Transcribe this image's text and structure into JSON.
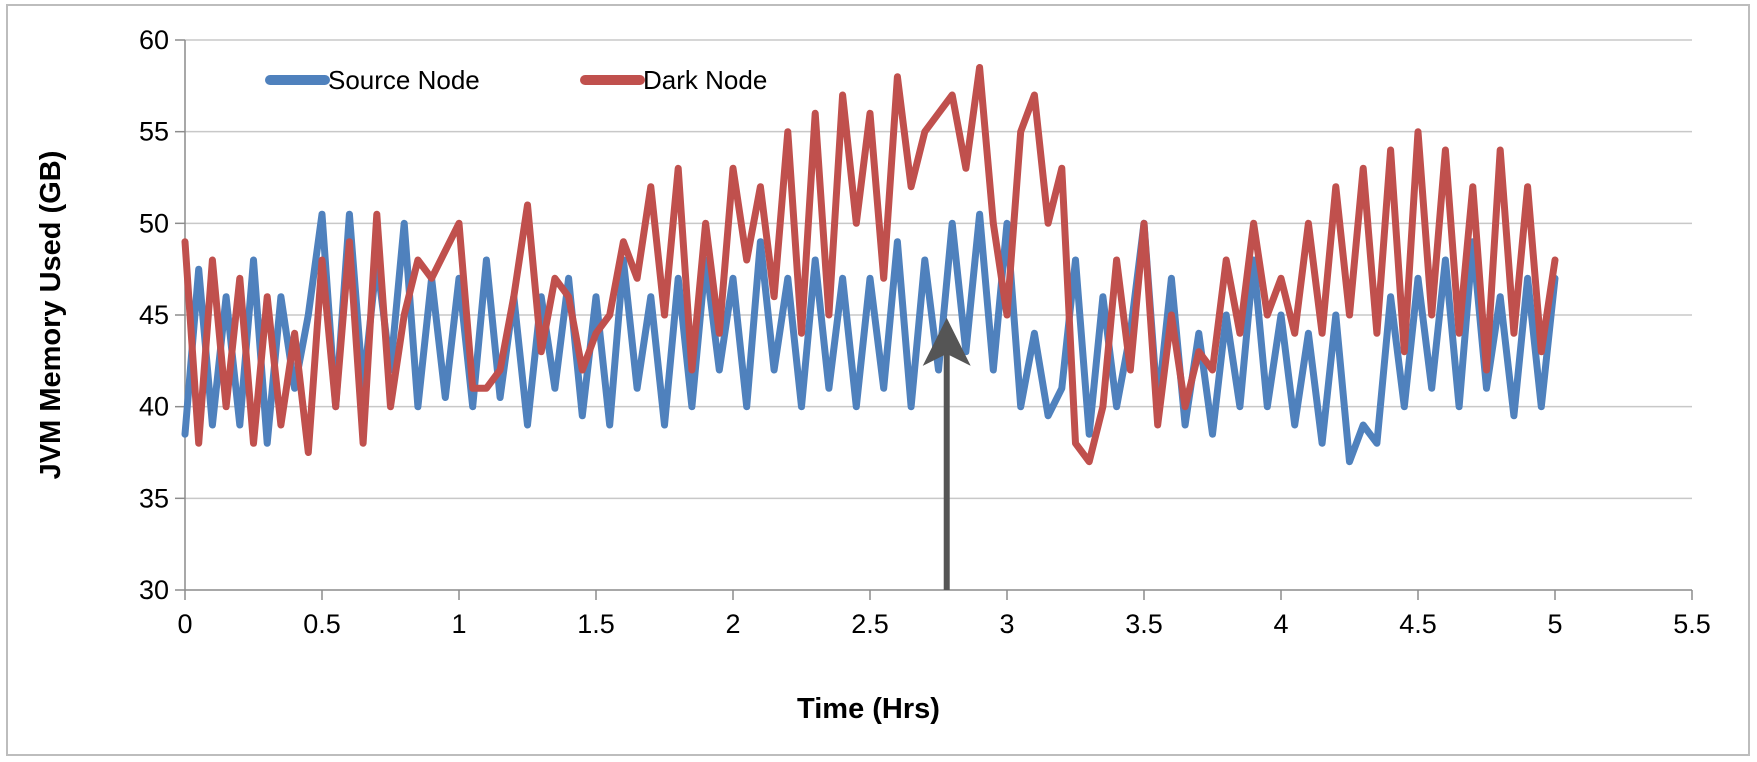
{
  "chart_data": {
    "type": "line",
    "title": "",
    "xlabel": "Time (Hrs)",
    "ylabel": "JVM Memory Used (GB)",
    "xlim": [
      0,
      5.5
    ],
    "ylim": [
      30,
      60
    ],
    "x_ticks": [
      "0",
      "0.5",
      "1",
      "1.5",
      "2",
      "2.5",
      "3",
      "3.5",
      "4",
      "4.5",
      "5",
      "5.5"
    ],
    "y_ticks": [
      "30",
      "35",
      "40",
      "45",
      "50",
      "55",
      "60"
    ],
    "grid": "horizontal",
    "legend_position": "top-left",
    "series": [
      {
        "name": "Source Node",
        "color": "#4F81BD",
        "x": [
          0,
          0.05,
          0.1,
          0.15,
          0.2,
          0.25,
          0.3,
          0.35,
          0.4,
          0.45,
          0.5,
          0.55,
          0.6,
          0.65,
          0.7,
          0.75,
          0.8,
          0.85,
          0.9,
          0.95,
          1,
          1.05,
          1.1,
          1.15,
          1.2,
          1.25,
          1.3,
          1.35,
          1.4,
          1.45,
          1.5,
          1.55,
          1.6,
          1.65,
          1.7,
          1.75,
          1.8,
          1.85,
          1.9,
          1.95,
          2,
          2.05,
          2.1,
          2.15,
          2.2,
          2.25,
          2.3,
          2.35,
          2.4,
          2.45,
          2.5,
          2.55,
          2.6,
          2.65,
          2.7,
          2.75,
          2.8,
          2.85,
          2.9,
          2.95,
          3,
          3.05,
          3.1,
          3.15,
          3.2,
          3.25,
          3.3,
          3.35,
          3.4,
          3.45,
          3.5,
          3.55,
          3.6,
          3.65,
          3.7,
          3.75,
          3.8,
          3.85,
          3.9,
          3.95,
          4,
          4.05,
          4.1,
          4.15,
          4.2,
          4.25,
          4.3,
          4.35,
          4.4,
          4.45,
          4.5,
          4.55,
          4.6,
          4.65,
          4.7,
          4.75,
          4.8,
          4.85,
          4.9,
          4.95,
          5
        ],
        "values": [
          38.5,
          47.5,
          39,
          46,
          39,
          48,
          38,
          46,
          41,
          45,
          50.5,
          40,
          50.5,
          41,
          48,
          42,
          50,
          40,
          47,
          40.5,
          47,
          40,
          48,
          40.5,
          46,
          39,
          46,
          41,
          47,
          39.5,
          46,
          39,
          48,
          41,
          46,
          39,
          47,
          40,
          48,
          42,
          47,
          40,
          49,
          42,
          47,
          40,
          48,
          41,
          47,
          40,
          47,
          41,
          49,
          40,
          48,
          42,
          50,
          43,
          50.5,
          42,
          50,
          40,
          44,
          39.5,
          41,
          48,
          38.5,
          46,
          40,
          44,
          50,
          40,
          47,
          39,
          44,
          38.5,
          45,
          40,
          48,
          40,
          45,
          39,
          44,
          38,
          45,
          37,
          39,
          38,
          46,
          40,
          47,
          41,
          48,
          40,
          49,
          41,
          46,
          39.5,
          47,
          40,
          47
        ]
      },
      {
        "name": "Dark Node",
        "color": "#C0504D",
        "x": [
          0,
          0.05,
          0.1,
          0.15,
          0.2,
          0.25,
          0.3,
          0.35,
          0.4,
          0.45,
          0.5,
          0.55,
          0.6,
          0.65,
          0.7,
          0.75,
          0.8,
          0.85,
          0.9,
          0.95,
          1,
          1.05,
          1.1,
          1.15,
          1.2,
          1.25,
          1.3,
          1.35,
          1.4,
          1.45,
          1.5,
          1.55,
          1.6,
          1.65,
          1.7,
          1.75,
          1.8,
          1.85,
          1.9,
          1.95,
          2,
          2.05,
          2.1,
          2.15,
          2.2,
          2.25,
          2.3,
          2.35,
          2.4,
          2.45,
          2.5,
          2.55,
          2.6,
          2.65,
          2.7,
          2.75,
          2.8,
          2.85,
          2.9,
          2.95,
          3,
          3.05,
          3.1,
          3.15,
          3.2,
          3.25,
          3.3,
          3.35,
          3.4,
          3.45,
          3.5,
          3.55,
          3.6,
          3.65,
          3.7,
          3.75,
          3.8,
          3.85,
          3.9,
          3.95,
          4,
          4.05,
          4.1,
          4.15,
          4.2,
          4.25,
          4.3,
          4.35,
          4.4,
          4.45,
          4.5,
          4.55,
          4.6,
          4.65,
          4.7,
          4.75,
          4.8,
          4.85,
          4.9,
          4.95,
          5
        ],
        "values": [
          49,
          38,
          48,
          40,
          47,
          38,
          46,
          39,
          44,
          37.5,
          48,
          40,
          49,
          38,
          50.5,
          40,
          45,
          48,
          47,
          48.5,
          50,
          41,
          41,
          42,
          46,
          51,
          43,
          47,
          46,
          42,
          44,
          45,
          49,
          47,
          52,
          45,
          53,
          42,
          50,
          44,
          53,
          48,
          52,
          46,
          55,
          44,
          56,
          45,
          57,
          50,
          56,
          47,
          58,
          52,
          55,
          56,
          57,
          53,
          58.5,
          50,
          45,
          55,
          57,
          50,
          53,
          38,
          37,
          40,
          48,
          42,
          50,
          39,
          45,
          40,
          43,
          42,
          48,
          44,
          50,
          45,
          47,
          44,
          50,
          44,
          52,
          45,
          53,
          44,
          54,
          43,
          55,
          45,
          54,
          44,
          52,
          42,
          54,
          44,
          52,
          43,
          48
        ]
      }
    ],
    "annotation": {
      "type": "arrow",
      "x": 2.78,
      "y_from": 30,
      "y_to": 44.3,
      "color": "#555555"
    }
  }
}
